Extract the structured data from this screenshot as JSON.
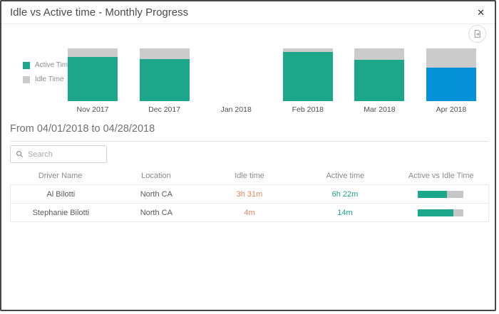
{
  "dialog": {
    "title": "Idle vs Active time - Monthly Progress",
    "close_glyph": "✕"
  },
  "icons": {
    "close": "x-icon",
    "export": "export-report-icon",
    "search": "magnifier-icon"
  },
  "chart_data": {
    "type": "bar",
    "stacked": true,
    "unit": "percent of total time",
    "categories": [
      "Nov 2017",
      "Dec 2017",
      "Jan 2018",
      "Feb 2018",
      "Mar 2018",
      "Apr 2018"
    ],
    "series": [
      {
        "name": "Active Time",
        "color": "#1ca78a",
        "values": [
          84,
          80,
          0,
          93,
          79,
          64
        ]
      },
      {
        "name": "Idle Time",
        "color": "#cbcbcb",
        "values": [
          16,
          20,
          0,
          7,
          21,
          36
        ]
      }
    ],
    "no_data_categories": [
      "Jan 2018"
    ],
    "highlighted_category": "Apr 2018",
    "highlight_color": "#0591d8",
    "legend_position": "left",
    "grid": false,
    "axes_hidden": true
  },
  "period": {
    "label": "From 04/01/2018 to 04/28/2018"
  },
  "search": {
    "placeholder": "Search"
  },
  "table": {
    "columns": [
      "Driver Name",
      "Location",
      "Idle time",
      "Active time",
      "Active vs Idle Time"
    ],
    "rows": [
      {
        "driver": "Al Bilotti",
        "location": "North CA",
        "idle": "3h 31m",
        "active": "6h 22m",
        "active_pct": 64
      },
      {
        "driver": "Stephanie Bilotti",
        "location": "North CA",
        "idle": "4m",
        "active": "14m",
        "active_pct": 78
      }
    ]
  },
  "colors": {
    "active_teal": "#1ca78a",
    "idle_gray": "#cbcbcb",
    "highlight_blue": "#0591d8",
    "idle_text_orange": "#e0875c",
    "progress_track": "#c6c6c6"
  }
}
